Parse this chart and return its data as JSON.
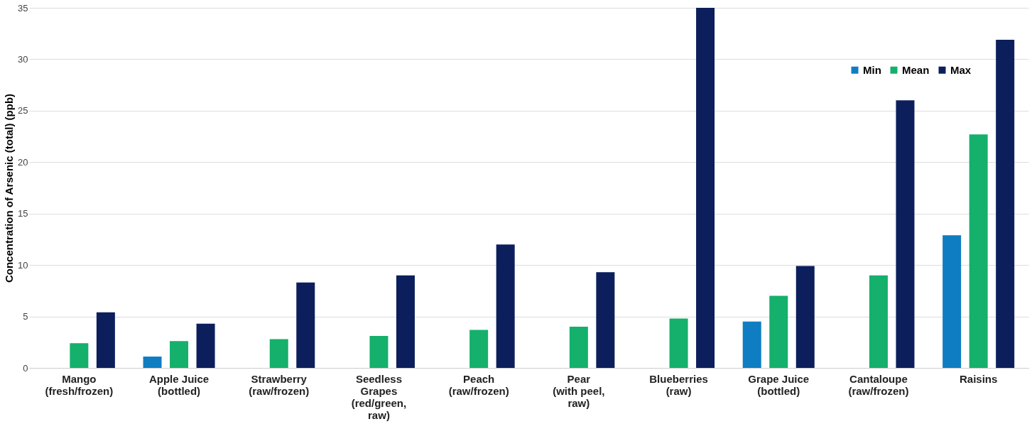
{
  "chart_data": {
    "type": "bar",
    "ylabel": "Concentration of Arsenic (total) (ppb)",
    "categories": [
      "Mango\n(fresh/frozen)",
      "Apple Juice\n(bottled)",
      "Strawberry\n(raw/frozen)",
      "Seedless\nGrapes\n(red/green,\nraw)",
      "Peach\n(raw/frozen)",
      "Pear\n(with peel,\nraw)",
      "Blueberries\n(raw)",
      "Grape Juice\n(bottled)",
      "Cantaloupe\n(raw/frozen)",
      "Raisins"
    ],
    "series": [
      {
        "name": "Min",
        "color": "#0f7dc2",
        "values": [
          null,
          1.1,
          null,
          null,
          null,
          null,
          null,
          4.5,
          null,
          12.9
        ]
      },
      {
        "name": "Mean",
        "color": "#14b06c",
        "values": [
          2.4,
          2.6,
          2.8,
          3.1,
          3.7,
          4.0,
          4.8,
          7.0,
          9.0,
          22.7
        ]
      },
      {
        "name": "Max",
        "color": "#0c1f5c",
        "values": [
          5.4,
          4.3,
          8.3,
          9.0,
          12.0,
          9.3,
          35.0,
          9.9,
          26.0,
          31.9
        ]
      }
    ],
    "ylim": [
      0,
      35
    ],
    "yticks": [
      0,
      5,
      10,
      15,
      20,
      25,
      30,
      35
    ],
    "grid": "y",
    "legend": "top right"
  }
}
